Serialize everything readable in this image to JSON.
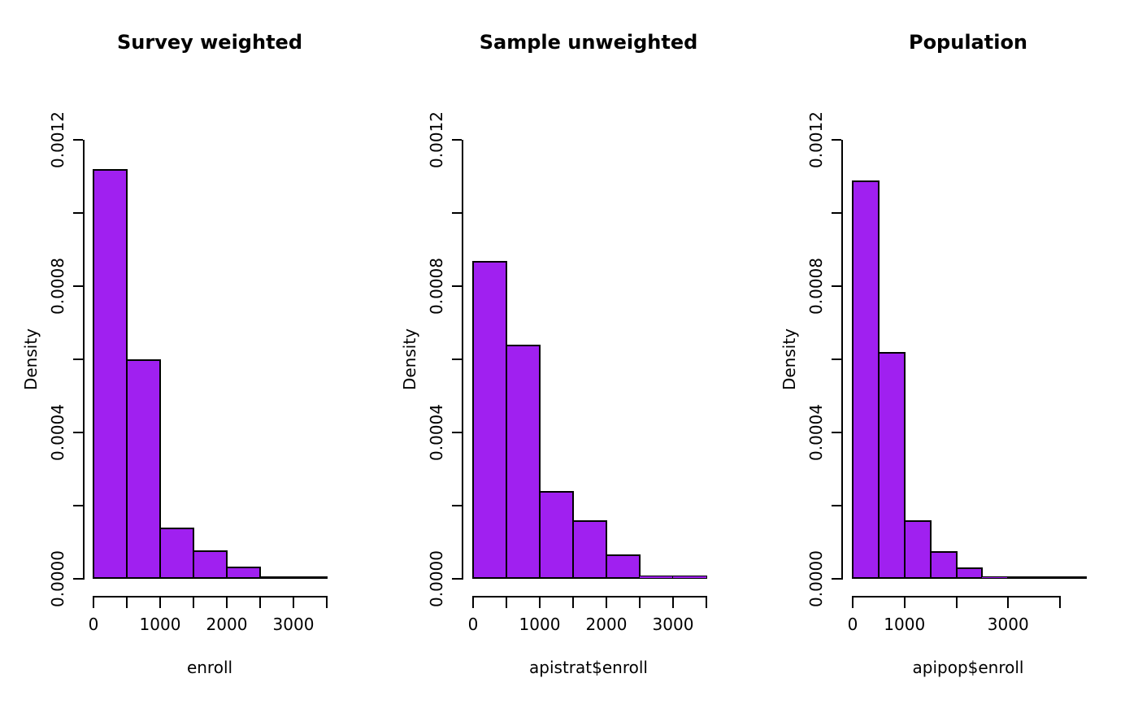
{
  "figure": {
    "background": "#ffffff",
    "bar_fill": "#A020F0",
    "bar_border": "#000000"
  },
  "chart_data": [
    {
      "type": "bar",
      "subtype": "histogram",
      "title": "Survey weighted",
      "xlabel": "enroll",
      "ylabel": "Density",
      "xlim": [
        0,
        3500
      ],
      "ylim": [
        0,
        0.0012
      ],
      "grid": false,
      "legend": false,
      "bin_width": 500,
      "bin_edges": [
        0,
        500,
        1000,
        1500,
        2000,
        2500,
        3000,
        3500
      ],
      "densities": [
        0.00112,
        0.0006,
        0.00014,
        7.8e-05,
        3.3e-05,
        2e-06,
        2e-06
      ],
      "x_ticks": [
        {
          "value": 0,
          "label": "0"
        },
        {
          "value": 500,
          "label": ""
        },
        {
          "value": 1000,
          "label": "1000"
        },
        {
          "value": 1500,
          "label": ""
        },
        {
          "value": 2000,
          "label": "2000"
        },
        {
          "value": 2500,
          "label": ""
        },
        {
          "value": 3000,
          "label": "3000"
        },
        {
          "value": 3500,
          "label": ""
        }
      ],
      "y_ticks": [
        {
          "value": 0,
          "label": "0.0000"
        },
        {
          "value": 0.0002,
          "label": ""
        },
        {
          "value": 0.0004,
          "label": "0.0004"
        },
        {
          "value": 0.0006,
          "label": ""
        },
        {
          "value": 0.0008,
          "label": "0.0008"
        },
        {
          "value": 0.001,
          "label": ""
        },
        {
          "value": 0.0012,
          "label": "0.0012"
        }
      ]
    },
    {
      "type": "bar",
      "subtype": "histogram",
      "title": "Sample unweighted",
      "xlabel": "apistrat$enroll",
      "ylabel": "Density",
      "xlim": [
        0,
        3500
      ],
      "ylim": [
        0,
        0.0012
      ],
      "grid": false,
      "legend": false,
      "bin_width": 500,
      "bin_edges": [
        0,
        500,
        1000,
        1500,
        2000,
        2500,
        3000,
        3500
      ],
      "densities": [
        0.00087,
        0.00064,
        0.00024,
        0.00016,
        6.7e-05,
        1e-05,
        1e-05
      ],
      "x_ticks": [
        {
          "value": 0,
          "label": "0"
        },
        {
          "value": 500,
          "label": ""
        },
        {
          "value": 1000,
          "label": "1000"
        },
        {
          "value": 1500,
          "label": ""
        },
        {
          "value": 2000,
          "label": "2000"
        },
        {
          "value": 2500,
          "label": ""
        },
        {
          "value": 3000,
          "label": "3000"
        },
        {
          "value": 3500,
          "label": ""
        }
      ],
      "y_ticks": [
        {
          "value": 0,
          "label": "0.0000"
        },
        {
          "value": 0.0002,
          "label": ""
        },
        {
          "value": 0.0004,
          "label": "0.0004"
        },
        {
          "value": 0.0006,
          "label": ""
        },
        {
          "value": 0.0008,
          "label": "0.0008"
        },
        {
          "value": 0.001,
          "label": ""
        },
        {
          "value": 0.0012,
          "label": "0.0012"
        }
      ]
    },
    {
      "type": "bar",
      "subtype": "histogram",
      "title": "Population",
      "xlabel": "apipop$enroll",
      "ylabel": "Density",
      "xlim": [
        0,
        4500
      ],
      "ylim": [
        0,
        0.0012
      ],
      "grid": false,
      "legend": false,
      "bin_width": 500,
      "bin_edges": [
        0,
        500,
        1000,
        1500,
        2000,
        2500,
        3000,
        3500,
        4000,
        4500
      ],
      "densities": [
        0.00109,
        0.00062,
        0.00016,
        7.6e-05,
        3.1e-05,
        6.7e-06,
        5.6e-06,
        1e-06,
        1e-06
      ],
      "x_ticks": [
        {
          "value": 0,
          "label": "0"
        },
        {
          "value": 1000,
          "label": "1000"
        },
        {
          "value": 2000,
          "label": ""
        },
        {
          "value": 3000,
          "label": "3000"
        },
        {
          "value": 4000,
          "label": ""
        }
      ],
      "y_ticks": [
        {
          "value": 0,
          "label": "0.0000"
        },
        {
          "value": 0.0002,
          "label": ""
        },
        {
          "value": 0.0004,
          "label": "0.0004"
        },
        {
          "value": 0.0006,
          "label": ""
        },
        {
          "value": 0.0008,
          "label": "0.0008"
        },
        {
          "value": 0.001,
          "label": ""
        },
        {
          "value": 0.0012,
          "label": "0.0012"
        }
      ]
    }
  ]
}
